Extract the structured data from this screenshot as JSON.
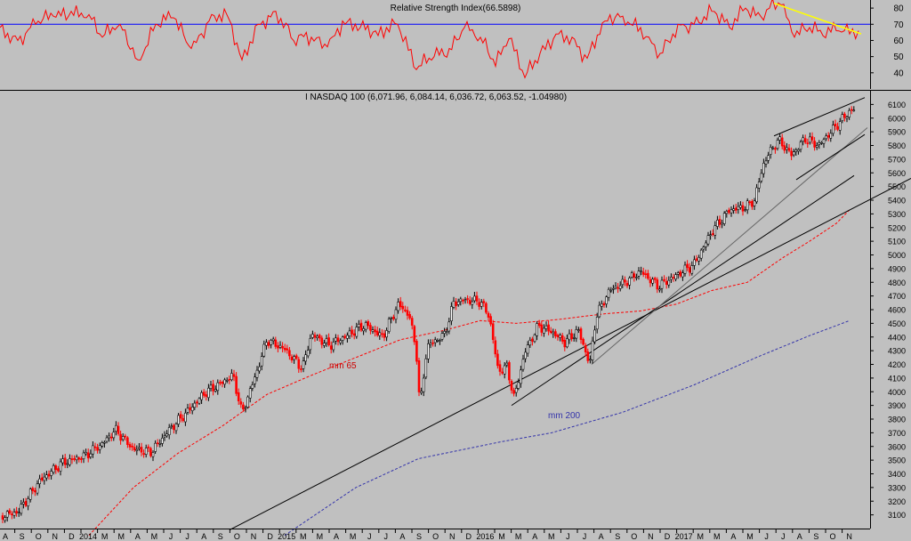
{
  "chart_data": [
    {
      "type": "line",
      "title": "Relative Strength Index(66.5898)",
      "y_ticks": [
        40,
        50,
        60,
        70,
        80
      ],
      "ylim": [
        30,
        85
      ],
      "reference_line": 70,
      "series": [
        {
          "name": "RSI",
          "color": "#ff0000",
          "x": [
            0,
            20,
            40,
            60,
            80,
            100,
            115,
            135,
            155,
            175,
            195,
            215,
            235,
            255,
            272,
            290,
            310,
            330,
            350,
            368,
            385,
            405,
            425,
            447,
            468,
            488,
            505,
            522,
            540,
            557,
            572,
            590,
            607,
            625,
            643,
            660,
            680,
            700,
            720,
            742,
            762,
            780,
            800,
            820,
            838,
            855,
            865,
            878,
            893,
            910,
            925,
            940,
            955,
            965
          ],
          "y": [
            68,
            60,
            70,
            75,
            78,
            76,
            62,
            70,
            48,
            70,
            74,
            55,
            72,
            76,
            48,
            70,
            78,
            60,
            62,
            56,
            72,
            68,
            63,
            70,
            42,
            50,
            55,
            68,
            62,
            44,
            61,
            37,
            52,
            64,
            62,
            49,
            72,
            75,
            68,
            52,
            70,
            70,
            78,
            68,
            80,
            75,
            80,
            82,
            62,
            68,
            63,
            66,
            64,
            66
          ]
        }
      ],
      "annotation_line": {
        "color": "#ffff00",
        "from": [
          870,
          83
        ],
        "to": [
          968,
          64
        ]
      }
    },
    {
      "type": "candlestick",
      "title": "I NASDAQ 100 (6,071.96, 6,084.14, 6,036.72, 6,063.52, -1.04980)",
      "ylim": [
        3000,
        6200
      ],
      "y_ticks": [
        3100,
        3200,
        3300,
        3400,
        3500,
        3600,
        3700,
        3800,
        3900,
        4000,
        4100,
        4200,
        4300,
        4400,
        4500,
        4600,
        4700,
        4800,
        4900,
        5000,
        5100,
        5200,
        5300,
        5400,
        5500,
        5600,
        5700,
        5800,
        5900,
        6000,
        6100
      ],
      "x_labels": [
        "A",
        "S",
        "O",
        "N",
        "D",
        "2014",
        "M",
        "M",
        "A",
        "M",
        "J",
        "J",
        "A",
        "S",
        "O",
        "N",
        "D",
        "2015",
        "M",
        "M",
        "A",
        "M",
        "J",
        "J",
        "A",
        "S",
        "O",
        "N",
        "D",
        "2016",
        "M",
        "M",
        "A",
        "M",
        "J",
        "J",
        "A",
        "S",
        "O",
        "N",
        "D",
        "2017",
        "M",
        "M",
        "A",
        "M",
        "J",
        "J",
        "A",
        "S",
        "O",
        "N"
      ],
      "price_path": [
        [
          0,
          3090
        ],
        [
          20,
          3120
        ],
        [
          45,
          3350
        ],
        [
          70,
          3480
        ],
        [
          95,
          3530
        ],
        [
          115,
          3620
        ],
        [
          130,
          3720
        ],
        [
          150,
          3580
        ],
        [
          170,
          3560
        ],
        [
          190,
          3720
        ],
        [
          210,
          3850
        ],
        [
          230,
          3990
        ],
        [
          248,
          4060
        ],
        [
          262,
          4120
        ],
        [
          272,
          3840
        ],
        [
          290,
          4170
        ],
        [
          300,
          4380
        ],
        [
          320,
          4310
        ],
        [
          340,
          4170
        ],
        [
          350,
          4420
        ],
        [
          370,
          4340
        ],
        [
          390,
          4410
        ],
        [
          410,
          4490
        ],
        [
          430,
          4400
        ],
        [
          448,
          4640
        ],
        [
          460,
          4560
        ],
        [
          468,
          4300
        ],
        [
          472,
          3880
        ],
        [
          480,
          4330
        ],
        [
          500,
          4420
        ],
        [
          510,
          4650
        ],
        [
          520,
          4670
        ],
        [
          540,
          4660
        ],
        [
          550,
          4550
        ],
        [
          560,
          4150
        ],
        [
          570,
          4180
        ],
        [
          578,
          3950
        ],
        [
          590,
          4290
        ],
        [
          605,
          4480
        ],
        [
          620,
          4440
        ],
        [
          635,
          4360
        ],
        [
          650,
          4450
        ],
        [
          663,
          4200
        ],
        [
          670,
          4550
        ],
        [
          685,
          4740
        ],
        [
          700,
          4790
        ],
        [
          720,
          4880
        ],
        [
          740,
          4770
        ],
        [
          760,
          4850
        ],
        [
          780,
          4930
        ],
        [
          800,
          5170
        ],
        [
          820,
          5330
        ],
        [
          838,
          5350
        ],
        [
          848,
          5400
        ],
        [
          858,
          5660
        ],
        [
          865,
          5750
        ],
        [
          875,
          5840
        ],
        [
          890,
          5730
        ],
        [
          905,
          5850
        ],
        [
          920,
          5800
        ],
        [
          930,
          5870
        ],
        [
          945,
          5980
        ],
        [
          955,
          6050
        ],
        [
          960,
          6064
        ]
      ],
      "mm65": {
        "label": "mm 65",
        "color": "#ff0000",
        "path": [
          [
            100,
            2950
          ],
          [
            150,
            3300
          ],
          [
            200,
            3550
          ],
          [
            250,
            3750
          ],
          [
            300,
            3980
          ],
          [
            350,
            4120
          ],
          [
            400,
            4250
          ],
          [
            450,
            4380
          ],
          [
            500,
            4450
          ],
          [
            540,
            4520
          ],
          [
            580,
            4500
          ],
          [
            630,
            4530
          ],
          [
            680,
            4570
          ],
          [
            720,
            4590
          ],
          [
            760,
            4640
          ],
          [
            800,
            4740
          ],
          [
            840,
            4800
          ],
          [
            880,
            4980
          ],
          [
            910,
            5100
          ],
          [
            940,
            5230
          ],
          [
            955,
            5330
          ]
        ]
      },
      "mm200": {
        "label": "mm 200",
        "color": "#3333aa",
        "path": [
          [
            320,
            2950
          ],
          [
            400,
            3300
          ],
          [
            470,
            3510
          ],
          [
            560,
            3630
          ],
          [
            620,
            3700
          ],
          [
            700,
            3850
          ],
          [
            780,
            4050
          ],
          [
            850,
            4250
          ],
          [
            910,
            4410
          ],
          [
            955,
            4520
          ]
        ]
      },
      "trendlines": [
        {
          "color": "#000000",
          "from": [
            258,
            2990
          ],
          "to": [
            1024,
            5560
          ]
        },
        {
          "color": "#000000",
          "from": [
            575,
            3900
          ],
          "to": [
            960,
            5580
          ]
        },
        {
          "color": "#666666",
          "from": [
            665,
            4200
          ],
          "to": [
            975,
            5930
          ]
        },
        {
          "color": "#000000",
          "from": [
            870,
            5870
          ],
          "to": [
            972,
            6150
          ]
        },
        {
          "color": "#000000",
          "from": [
            895,
            5550
          ],
          "to": [
            972,
            5880
          ]
        }
      ]
    }
  ]
}
